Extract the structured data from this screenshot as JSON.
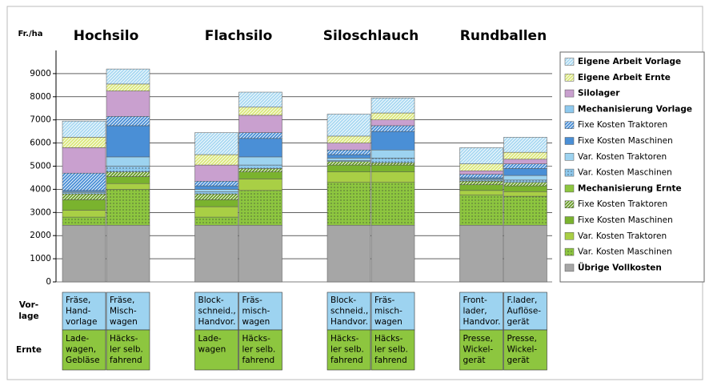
{
  "chart_data": {
    "type": "stacked_bar",
    "ylabel": "Fr./ha",
    "groups": [
      "Hochsilo",
      "Flachsilo",
      "Siloschlauch",
      "Rundballen"
    ],
    "ylim": [
      0,
      10000
    ],
    "yticks": [
      0,
      1000,
      2000,
      3000,
      4000,
      5000,
      6000,
      7000,
      8000,
      9000
    ],
    "grid": true,
    "legend": "right",
    "series": [
      {
        "name": "Übrige Vollkosten",
        "color": "#a6a6a6",
        "pattern": "solid",
        "bold": true,
        "values": [
          2450,
          2450,
          2450,
          2450,
          2450,
          2450,
          2450,
          2450
        ]
      },
      {
        "name": "Var. Kosten Maschinen",
        "color": "#8dc63f",
        "pattern": "dots",
        "bold": false,
        "values": [
          350,
          1550,
          350,
          1500,
          1850,
          1850,
          1300,
          1250
        ]
      },
      {
        "name": "Var. Kosten Traktoren",
        "color": "#a9cf45",
        "pattern": "solid",
        "bold": false,
        "values": [
          300,
          250,
          450,
          500,
          450,
          450,
          200,
          200
        ]
      },
      {
        "name": "Fixe Kosten Maschinen",
        "color": "#7ab32e",
        "pattern": "solid",
        "bold": false,
        "values": [
          450,
          300,
          300,
          300,
          300,
          300,
          250,
          250
        ]
      },
      {
        "name": "Fixe Kosten Traktoren",
        "color": "#6a9e2a",
        "pattern": "hatch",
        "bold": false,
        "values": [
          250,
          200,
          250,
          150,
          150,
          100,
          150,
          150
        ]
      },
      {
        "name": "Mechanisierung Ernte",
        "color": "#8dc63f",
        "pattern": "solid",
        "bold": true,
        "values": [
          0,
          0,
          0,
          0,
          0,
          0,
          0,
          0
        ]
      },
      {
        "name": "Var. Kosten Maschinen",
        "color": "#8ec9ee",
        "pattern": "dots",
        "bold": false,
        "values": [
          50,
          250,
          100,
          150,
          50,
          200,
          50,
          100
        ]
      },
      {
        "name": "Var. Kosten Traktoren",
        "color": "#9dd3f0",
        "pattern": "solid",
        "bold": false,
        "values": [
          50,
          400,
          100,
          350,
          100,
          350,
          50,
          200
        ]
      },
      {
        "name": "Fixe Kosten Maschinen",
        "color": "#4a8fd6",
        "pattern": "solid",
        "bold": false,
        "values": [
          50,
          1350,
          150,
          800,
          150,
          800,
          50,
          300
        ]
      },
      {
        "name": "Fixe Kosten Traktoren",
        "color": "#4a8fd6",
        "pattern": "hatch",
        "bold": false,
        "values": [
          750,
          400,
          200,
          250,
          200,
          250,
          150,
          200
        ]
      },
      {
        "name": "Mechanisierung Vorlage",
        "color": "#8ec9ee",
        "pattern": "solid",
        "bold": true,
        "values": [
          0,
          0,
          0,
          0,
          0,
          0,
          0,
          0
        ]
      },
      {
        "name": "Silolager",
        "color": "#c9a0cf",
        "pattern": "solid",
        "bold": true,
        "values": [
          1100,
          1100,
          700,
          750,
          300,
          250,
          150,
          200
        ]
      },
      {
        "name": "Eigene Arbeit Ernte",
        "color": "#dbe87c",
        "pattern": "hatch",
        "bold": true,
        "values": [
          450,
          300,
          450,
          350,
          300,
          300,
          300,
          300
        ]
      },
      {
        "name": "Eigene Arbeit Vorlage",
        "color": "#a9d9f2",
        "pattern": "hatch",
        "bold": true,
        "values": [
          700,
          650,
          950,
          650,
          950,
          650,
          700,
          650
        ]
      }
    ]
  },
  "table": {
    "vorlage_label": [
      "Vor-",
      "lage"
    ],
    "ernte_label": "Ernte",
    "vorlage_color": "#9dd3f0",
    "ernte_color": "#8dc63f",
    "vorlage": [
      [
        "Fräse,",
        "Hand-",
        "vorlage"
      ],
      [
        "Fräse,",
        "Misch-",
        "wagen"
      ],
      [
        "Block-",
        "schneid.,",
        "Handvor."
      ],
      [
        "Fräs-",
        "misch-",
        "wagen"
      ],
      [
        "Block-",
        "schneid.,",
        "Handvor."
      ],
      [
        "Fräs-",
        "misch-",
        "wagen"
      ],
      [
        "Front-",
        "lader,",
        "Handvor."
      ],
      [
        "F.lader,",
        "Auflöse-",
        "gerät"
      ]
    ],
    "ernte": [
      [
        "Lade-",
        "wagen,",
        "Gebläse"
      ],
      [
        "Häcks-",
        "ler selb.",
        "fahrend"
      ],
      [
        "Lade-",
        "wagen"
      ],
      [
        "Häcks-",
        "ler selb.",
        "fahrend"
      ],
      [
        "Häcks-",
        "ler selb.",
        "fahrend"
      ],
      [
        "Häcks-",
        "ler selb.",
        "fahrend"
      ],
      [
        "Presse,",
        "Wickel-",
        "gerät"
      ],
      [
        "Presse,",
        "Wickel-",
        "gerät"
      ]
    ]
  }
}
